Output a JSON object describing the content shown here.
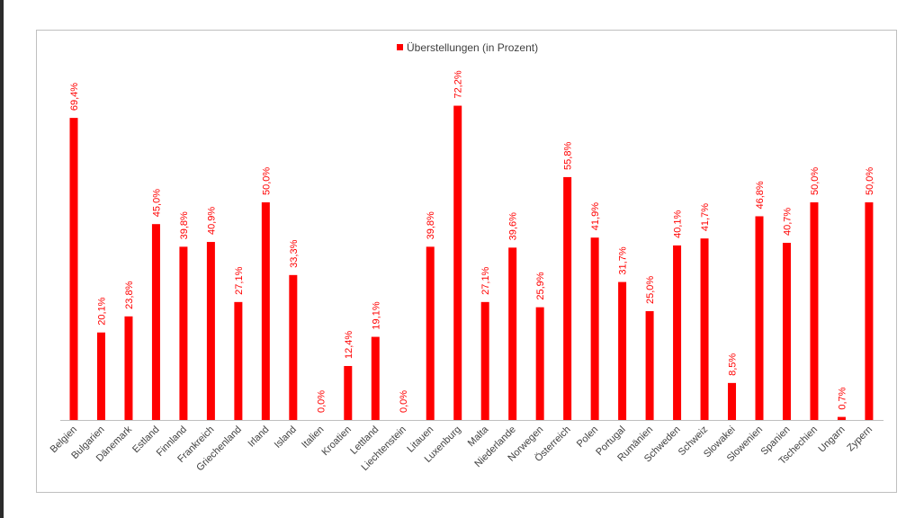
{
  "chart_data": {
    "type": "bar",
    "title": "",
    "xlabel": "",
    "ylabel": "",
    "ylim": [
      0,
      75
    ],
    "grid": false,
    "legend": {
      "position": "top-center",
      "entries": [
        "Überstellungen (in Prozent)"
      ]
    },
    "colors": {
      "bar": "#ff0000",
      "label": "#ff0000",
      "frame": "#bfbfbf",
      "axis": "#bfbfbf",
      "text": "#404040"
    },
    "categories": [
      "Belgien",
      "Bulgarien",
      "Dänemark",
      "Estland",
      "Finnland",
      "Frankreich",
      "Griechenland",
      "Irland",
      "Island",
      "Italien",
      "Kroatien",
      "Lettland",
      "Liechtenstein",
      "Litauen",
      "Luxenburg",
      "Malta",
      "Niederlande",
      "Norwegen",
      "Österreich",
      "Polen",
      "Portugal",
      "Rumänien",
      "Schweden",
      "Schweiz",
      "Slowakei",
      "Slowenien",
      "Spanien",
      "Tschechien",
      "Ungarn",
      "Zypern"
    ],
    "series": [
      {
        "name": "Überstellungen (in Prozent)",
        "values": [
          69.4,
          20.1,
          23.8,
          45.0,
          39.8,
          40.9,
          27.1,
          50.0,
          33.3,
          0.0,
          12.4,
          19.1,
          0.0,
          39.8,
          72.2,
          27.1,
          39.6,
          25.9,
          55.8,
          41.9,
          31.7,
          25.0,
          40.1,
          41.7,
          8.5,
          46.8,
          40.7,
          50.0,
          0.7,
          50.0
        ],
        "labels": [
          "69,4%",
          "20,1%",
          "23,8%",
          "45,0%",
          "39,8%",
          "40,9%",
          "27,1%",
          "50,0%",
          "33,3%",
          "0,0%",
          "12,4%",
          "19,1%",
          "0,0%",
          "39,8%",
          "72,2%",
          "27,1%",
          "39,6%",
          "25,9%",
          "55,8%",
          "41,9%",
          "31,7%",
          "25,0%",
          "40,1%",
          "41,7%",
          "8,5%",
          "46,8%",
          "40,7%",
          "50,0%",
          "0,7%",
          "50,0%"
        ]
      }
    ]
  }
}
